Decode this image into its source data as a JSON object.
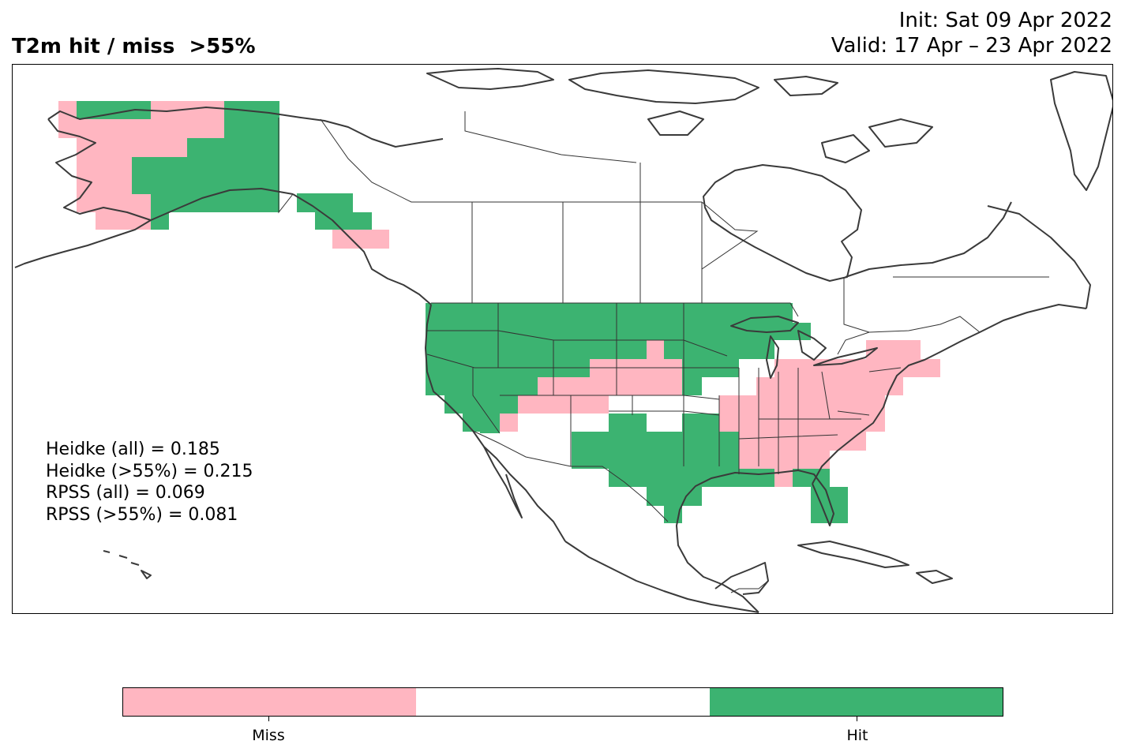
{
  "title": {
    "left": "T2m hit / miss  >55%",
    "init": "Init: Sat 09 Apr 2022",
    "valid": "Valid: 17 Apr – 23 Apr 2022"
  },
  "stats": [
    "Heidke (all) = 0.185",
    "Heidke (>55%) = 0.215",
    "RPSS (all) = 0.069",
    "RPSS (>55%) = 0.081"
  ],
  "legend": {
    "categories": [
      {
        "label": "Miss",
        "color": "#ffb6c1"
      },
      {
        "label": "",
        "color": "#ffffff"
      },
      {
        "label": "Hit",
        "color": "#3cb371"
      }
    ]
  },
  "colors": {
    "miss": "#ffb6c1",
    "hit": "#3cb371",
    "coastline": "#3a3a3a",
    "border": "#333333"
  }
}
